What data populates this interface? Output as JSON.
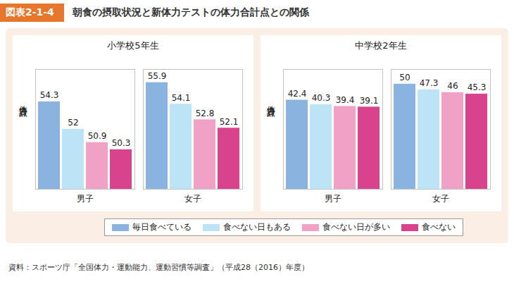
{
  "header": {
    "label": "図表2-1-4",
    "title": "朝食の摂取状況と新体力テストの体力合計点との関係"
  },
  "source": "資料：スポーツ庁「全国体力・運動能力、運動習慣等調査」（平成28（2016）年度）",
  "chart_data": [
    {
      "type": "bar",
      "title": "小学校5年生",
      "y_label": "体力合計点",
      "categories": [
        "男子",
        "女子"
      ],
      "series": [
        {
          "name": "毎日食べている",
          "color": "#8ab4df",
          "values": [
            54.3,
            55.9
          ]
        },
        {
          "name": "食べない日もある",
          "color": "#bde4f6",
          "values": [
            52.0,
            54.1
          ]
        },
        {
          "name": "食べない日が多い",
          "color": "#f1a0c6",
          "values": [
            50.9,
            52.8
          ]
        },
        {
          "name": "食べない",
          "color": "#d9438e",
          "values": [
            50.3,
            52.1
          ]
        }
      ],
      "ylim": [
        47,
        57
      ],
      "yticks": [],
      "tick_labels": "x",
      "data_labels": true,
      "legend": "bottom",
      "grid": false
    },
    {
      "type": "bar",
      "title": "中学校2年生",
      "y_label": "体力合計点",
      "categories": [
        "男子",
        "女子"
      ],
      "series": [
        {
          "name": "毎日食べている",
          "color": "#8ab4df",
          "values": [
            42.4,
            50.0
          ]
        },
        {
          "name": "食べない日もある",
          "color": "#bde4f6",
          "values": [
            40.3,
            47.3
          ]
        },
        {
          "name": "食べない日が多い",
          "color": "#f1a0c6",
          "values": [
            39.4,
            46.0
          ]
        },
        {
          "name": "食べない",
          "color": "#d9438e",
          "values": [
            39.1,
            45.3
          ]
        }
      ],
      "ylim": [
        0,
        57
      ],
      "yticks": [],
      "tick_labels": "x",
      "data_labels": true,
      "legend": "bottom",
      "grid": false
    }
  ]
}
